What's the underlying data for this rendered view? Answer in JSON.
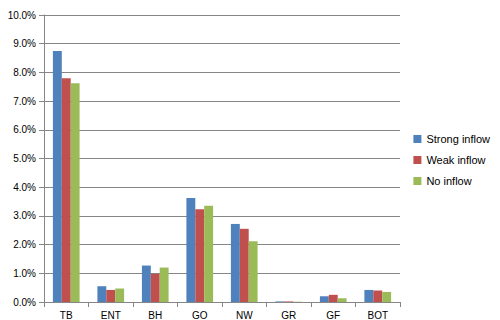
{
  "chart_data": {
    "type": "bar",
    "categories": [
      "TB",
      "ENT",
      "BH",
      "GO",
      "NW",
      "GR",
      "GF",
      "BOT"
    ],
    "series": [
      {
        "name": "Strong inflow",
        "color": "#4f81bd",
        "values": [
          8.75,
          0.55,
          1.27,
          3.62,
          2.72,
          0.02,
          0.2,
          0.42
        ]
      },
      {
        "name": "Weak inflow",
        "color": "#c0504d",
        "values": [
          7.8,
          0.42,
          0.98,
          3.23,
          2.55,
          0.02,
          0.25,
          0.4
        ]
      },
      {
        "name": "No inflow",
        "color": "#9bbb59",
        "values": [
          7.62,
          0.47,
          1.2,
          3.35,
          2.12,
          0.01,
          0.13,
          0.35
        ]
      }
    ],
    "ylim": [
      0,
      10
    ],
    "yticks": [
      {
        "value": 0,
        "label": "0.0%"
      },
      {
        "value": 1,
        "label": "1.0%"
      },
      {
        "value": 2,
        "label": "2.0%"
      },
      {
        "value": 3,
        "label": "3.0%"
      },
      {
        "value": 4,
        "label": "4.0%"
      },
      {
        "value": 5,
        "label": "5.0%"
      },
      {
        "value": 6,
        "label": "6.0%"
      },
      {
        "value": 7,
        "label": "7.0%"
      },
      {
        "value": 8,
        "label": "8.0%"
      },
      {
        "value": 9,
        "label": "9.0%"
      },
      {
        "value": 10,
        "label": "10.0%"
      }
    ],
    "grid": true,
    "legend": "right"
  }
}
